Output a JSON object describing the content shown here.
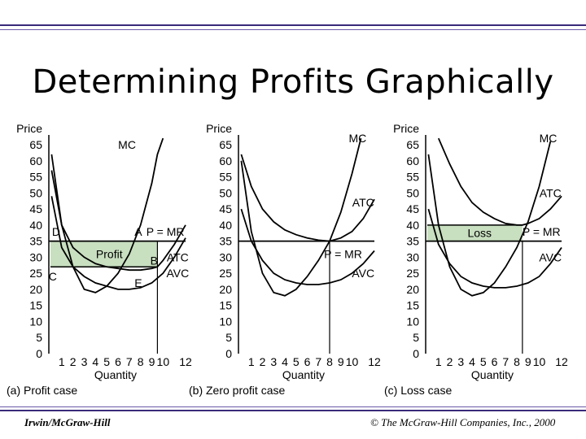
{
  "slide": {
    "title": "Determining Profits Graphically",
    "footer_left": "Irwin/McGraw-Hill",
    "footer_right": "© The McGraw-Hill Companies, Inc., 2000"
  },
  "colors": {
    "rule": "#3a2a7a",
    "shade": "#c8dfc0",
    "line": "#000000"
  },
  "chart_data": [
    {
      "type": "line",
      "panel": "(a) Profit case",
      "ylabel": "Price",
      "xlabel": "Quantity",
      "yticks": [
        "65",
        "60",
        "55",
        "50",
        "45",
        "40",
        "35",
        "30",
        "25",
        "20",
        "15",
        "10",
        "5",
        "0"
      ],
      "xticks": [
        "1",
        "2",
        "3",
        "4",
        "5",
        "6",
        "7",
        "8",
        "9",
        "10",
        "12"
      ],
      "ylim": [
        0,
        65
      ],
      "xlim": [
        0,
        12
      ],
      "price": 35,
      "quantity": 9.5,
      "atc_at_q": 27,
      "shaded_region": {
        "label": "Profit",
        "y_from": 27,
        "y_to": 35
      },
      "series": [
        {
          "name": "MC",
          "label_pos": [
            6.8,
            65
          ],
          "points": [
            [
              0.1,
              62
            ],
            [
              1,
              40
            ],
            [
              2,
              27
            ],
            [
              3,
              20
            ],
            [
              4,
              19
            ],
            [
              5,
              21
            ],
            [
              6,
              25
            ],
            [
              7,
              31
            ],
            [
              8,
              40
            ],
            [
              9,
              53
            ],
            [
              9.5,
              62
            ],
            [
              10,
              67
            ]
          ]
        },
        {
          "name": "ATC",
          "label_pos": [
            11.3,
            30
          ],
          "points": [
            [
              0.1,
              57
            ],
            [
              1,
              40
            ],
            [
              2,
              33
            ],
            [
              3,
              30
            ],
            [
              4,
              28
            ],
            [
              5,
              27
            ],
            [
              6,
              26.5
            ],
            [
              7,
              26
            ],
            [
              8,
              26
            ],
            [
              9,
              26.5
            ],
            [
              9.5,
              27
            ],
            [
              10,
              29
            ],
            [
              11,
              34
            ],
            [
              12,
              40
            ]
          ]
        },
        {
          "name": "AVC",
          "label_pos": [
            11.3,
            25
          ],
          "points": [
            [
              0.1,
              49
            ],
            [
              1,
              33
            ],
            [
              2,
              27
            ],
            [
              3,
              24
            ],
            [
              4,
              22
            ],
            [
              5,
              21
            ],
            [
              6,
              20
            ],
            [
              7,
              20
            ],
            [
              8,
              20.5
            ],
            [
              9,
              22
            ],
            [
              10,
              25
            ],
            [
              11,
              30
            ],
            [
              12,
              36
            ]
          ]
        }
      ],
      "hlines": [
        {
          "label": "P = MR",
          "value": 35,
          "label_pos": [
            10.2,
            38
          ]
        }
      ],
      "points": [
        {
          "label": "A",
          "x": 7.8,
          "y": 38
        },
        {
          "label": "B",
          "x": 9.2,
          "y": 29
        },
        {
          "label": "C",
          "x": 0.2,
          "y": 24
        },
        {
          "label": "D",
          "x": 0.5,
          "y": 38
        },
        {
          "label": "E",
          "x": 7.8,
          "y": 22
        }
      ]
    },
    {
      "type": "line",
      "panel": "(b) Zero profit case",
      "ylabel": "Price",
      "xlabel": "Quantity",
      "yticks": [
        "65",
        "60",
        "55",
        "50",
        "45",
        "40",
        "35",
        "30",
        "25",
        "20",
        "15",
        "10",
        "5",
        "0"
      ],
      "xticks": [
        "1",
        "2",
        "3",
        "4",
        "5",
        "6",
        "7",
        "8",
        "9",
        "10",
        "12"
      ],
      "ylim": [
        0,
        65
      ],
      "xlim": [
        0,
        12
      ],
      "price": 35,
      "quantity": 8,
      "series": [
        {
          "name": "MC",
          "label_pos": [
            10.5,
            67
          ],
          "points": [
            [
              0.1,
              60
            ],
            [
              1,
              38
            ],
            [
              2,
              25
            ],
            [
              3,
              19
            ],
            [
              4,
              18
            ],
            [
              5,
              20
            ],
            [
              6,
              24
            ],
            [
              7,
              29
            ],
            [
              8,
              35
            ],
            [
              9,
              44
            ],
            [
              10,
              56
            ],
            [
              10.8,
              67
            ]
          ]
        },
        {
          "name": "ATC",
          "label_pos": [
            11,
            47
          ],
          "points": [
            [
              0.1,
              62
            ],
            [
              1,
              52
            ],
            [
              2,
              45
            ],
            [
              3,
              41
            ],
            [
              4,
              38.5
            ],
            [
              5,
              37
            ],
            [
              6,
              36
            ],
            [
              7,
              35.3
            ],
            [
              8,
              35
            ],
            [
              9,
              36
            ],
            [
              10,
              38
            ],
            [
              11,
              42
            ],
            [
              12,
              48
            ]
          ]
        },
        {
          "name": "AVC",
          "label_pos": [
            11,
            25
          ],
          "points": [
            [
              0.1,
              45
            ],
            [
              1,
              35
            ],
            [
              2,
              29
            ],
            [
              3,
              25
            ],
            [
              4,
              23
            ],
            [
              5,
              22
            ],
            [
              6,
              21.5
            ],
            [
              7,
              21.5
            ],
            [
              8,
              22
            ],
            [
              9,
              23
            ],
            [
              10,
              25
            ],
            [
              11,
              28
            ],
            [
              12,
              32
            ]
          ]
        }
      ],
      "hlines": [
        {
          "label": "P = MR",
          "value": 35,
          "label_pos": [
            9.2,
            31
          ]
        }
      ],
      "points": []
    },
    {
      "type": "line",
      "panel": "(c) Loss case",
      "ylabel": "Price",
      "xlabel": "Quantity",
      "yticks": [
        "65",
        "60",
        "55",
        "50",
        "45",
        "40",
        "35",
        "30",
        "25",
        "20",
        "15",
        "10",
        "5",
        "0"
      ],
      "xticks": [
        "1",
        "2",
        "3",
        "4",
        "5",
        "6",
        "7",
        "8",
        "9",
        "10",
        "12"
      ],
      "ylim": [
        0,
        65
      ],
      "xlim": [
        0,
        12
      ],
      "price": 35,
      "quantity": 8.5,
      "atc_at_q": 40,
      "shaded_region": {
        "label": "Loss",
        "y_from": 35,
        "y_to": 40
      },
      "series": [
        {
          "name": "MC",
          "label_pos": [
            10.8,
            67
          ],
          "points": [
            [
              0.1,
              62
            ],
            [
              1,
              40
            ],
            [
              2,
              27
            ],
            [
              3,
              20
            ],
            [
              4,
              18
            ],
            [
              5,
              19
            ],
            [
              6,
              22
            ],
            [
              7,
              27
            ],
            [
              8,
              33
            ],
            [
              8.5,
              37
            ],
            [
              9,
              41
            ],
            [
              10,
              52
            ],
            [
              11,
              66
            ]
          ]
        },
        {
          "name": "ATC",
          "label_pos": [
            11,
            50
          ],
          "points": [
            [
              1,
              67
            ],
            [
              2,
              59
            ],
            [
              3,
              52
            ],
            [
              4,
              47
            ],
            [
              5,
              44
            ],
            [
              6,
              42
            ],
            [
              7,
              40.5
            ],
            [
              8,
              40
            ],
            [
              8.5,
              40
            ],
            [
              9,
              40.5
            ],
            [
              10,
              42
            ],
            [
              11,
              45
            ],
            [
              12,
              49
            ]
          ]
        },
        {
          "name": "AVC",
          "label_pos": [
            11,
            30
          ],
          "points": [
            [
              0.1,
              45
            ],
            [
              1,
              34
            ],
            [
              2,
              28
            ],
            [
              3,
              24
            ],
            [
              4,
              22
            ],
            [
              5,
              21
            ],
            [
              6,
              20.5
            ],
            [
              7,
              20.5
            ],
            [
              8,
              21
            ],
            [
              9,
              22
            ],
            [
              10,
              24
            ],
            [
              11,
              28
            ],
            [
              12,
              33
            ]
          ]
        }
      ],
      "hlines": [
        {
          "label": "P = MR",
          "value": 35,
          "label_pos": [
            10.2,
            38
          ]
        }
      ],
      "points": []
    }
  ]
}
